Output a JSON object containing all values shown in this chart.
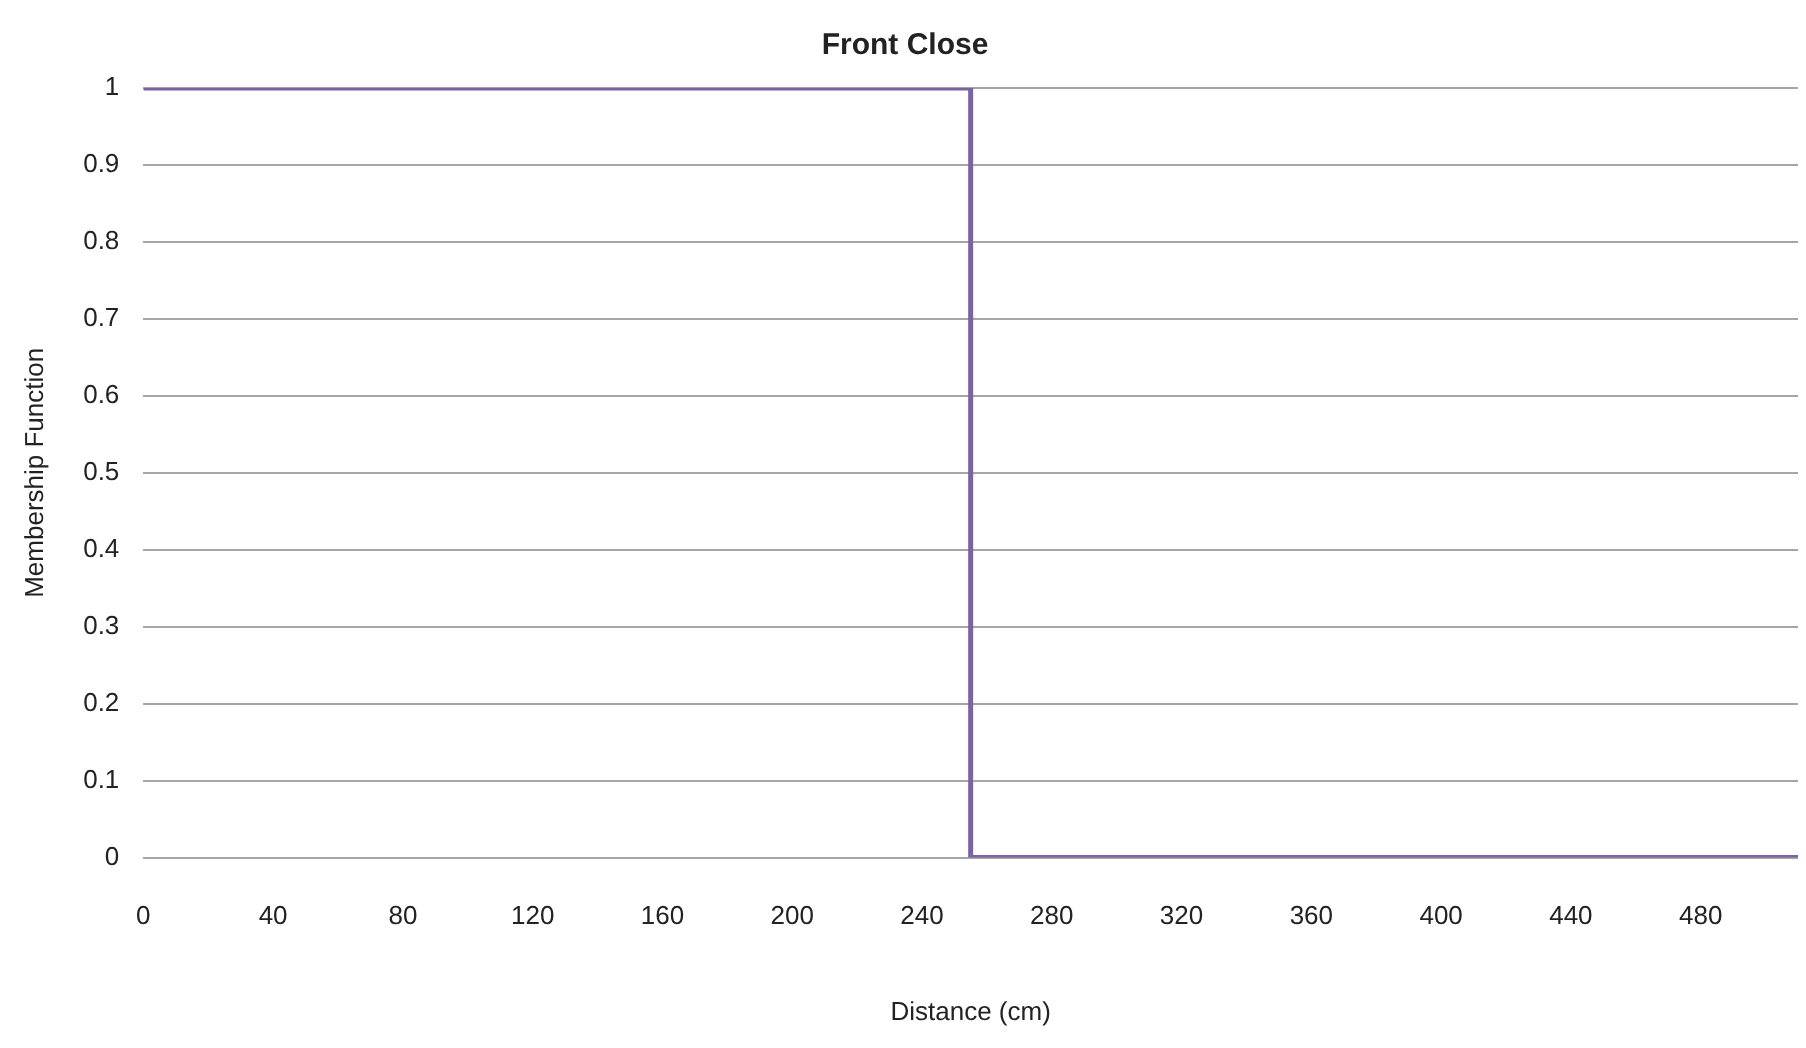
{
  "chart_data": {
    "type": "line",
    "title": "Front Close",
    "xlabel": "Distance (cm)",
    "ylabel": "Membership Function",
    "x": [
      0,
      255,
      255,
      510
    ],
    "series": [
      {
        "color": "#7b62a3",
        "values": [
          1,
          1,
          0,
          0
        ]
      }
    ],
    "xlim": [
      0,
      510
    ],
    "xticks": [
      0,
      40,
      80,
      120,
      160,
      200,
      240,
      280,
      320,
      360,
      400,
      440,
      480
    ],
    "ylim": [
      0,
      1
    ],
    "yticks": [
      0,
      0.1,
      0.2,
      0.3,
      0.4,
      0.5,
      0.6,
      0.7,
      0.8,
      0.9,
      1
    ],
    "grid": "y",
    "legend": false
  }
}
